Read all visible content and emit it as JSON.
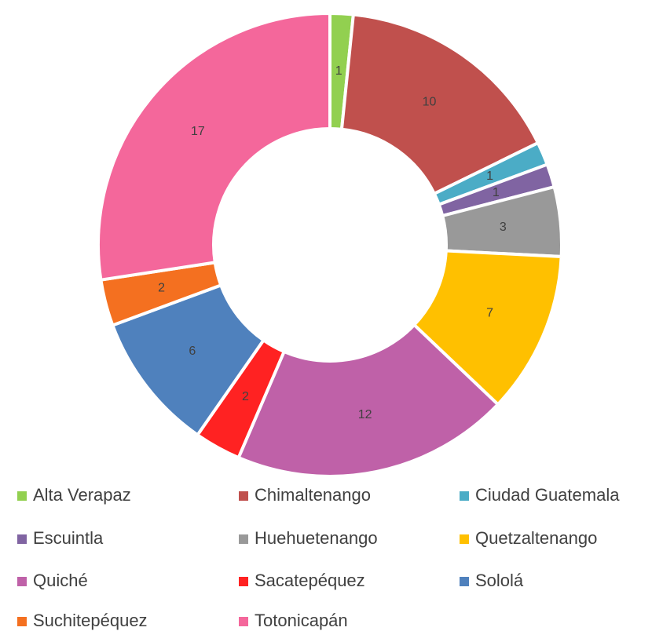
{
  "chart_data": {
    "type": "pie",
    "categories": [
      "Alta Verapaz",
      "Chimaltenango",
      "Ciudad Guatemala",
      "Escuintla",
      "Huehuetenango",
      "Quetzaltenango",
      "Quiché",
      "Sacatepéquez",
      "Sololá",
      "Suchitepéquez",
      "Totonicapán"
    ],
    "values": [
      1,
      10,
      1,
      1,
      3,
      7,
      12,
      2,
      6,
      2,
      17
    ],
    "colors": [
      "#92d050",
      "#c0504d",
      "#4bacc6",
      "#8064a2",
      "#999999",
      "#ffc000",
      "#bf61a8",
      "#ff2222",
      "#4f81bd",
      "#f47020",
      "#f4679b"
    ],
    "legend": "bottom"
  }
}
